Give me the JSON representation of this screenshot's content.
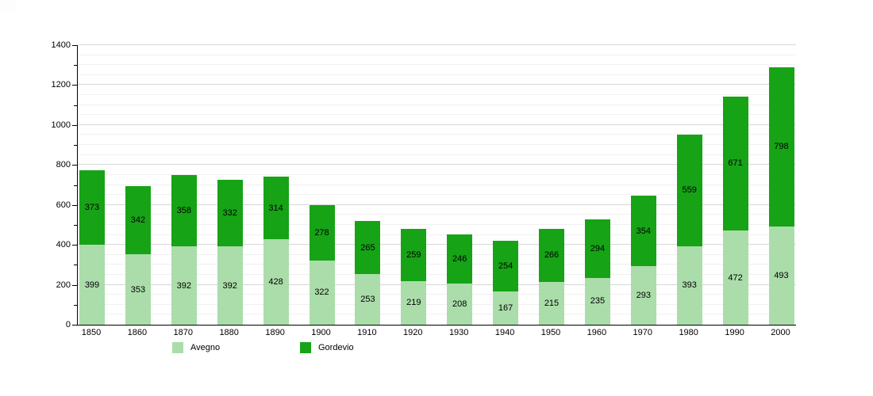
{
  "chart_data": {
    "type": "bar",
    "stacked": true,
    "title": "",
    "xlabel": "",
    "ylabel": "",
    "categories": [
      "1850",
      "1860",
      "1870",
      "1880",
      "1890",
      "1900",
      "1910",
      "1920",
      "1930",
      "1940",
      "1950",
      "1960",
      "1970",
      "1980",
      "1990",
      "2000"
    ],
    "series": [
      {
        "name": "Avegno",
        "color": "#aaddaa",
        "values": [
          399,
          353,
          392,
          392,
          428,
          322,
          253,
          219,
          208,
          167,
          215,
          235,
          293,
          393,
          472,
          493
        ]
      },
      {
        "name": "Gordevio",
        "color": "#16a316",
        "values": [
          373,
          342,
          358,
          332,
          314,
          278,
          265,
          259,
          246,
          254,
          266,
          294,
          354,
          559,
          671,
          798
        ]
      }
    ],
    "ylim": [
      0,
      1400
    ],
    "y_ticks": [
      0,
      200,
      400,
      600,
      800,
      1000,
      1200,
      1400
    ],
    "y_tick_minor_step": 100,
    "grid_minor_step": 50,
    "grid_major_step": 200,
    "grid": "on",
    "legend_position": "bottom",
    "show_value_labels": true
  },
  "colors": {
    "axis": "#000000",
    "grid_minor": "#f0f0f0",
    "grid_major": "#d8d8d8",
    "background": "#ffffff",
    "label_text": "#000000"
  }
}
